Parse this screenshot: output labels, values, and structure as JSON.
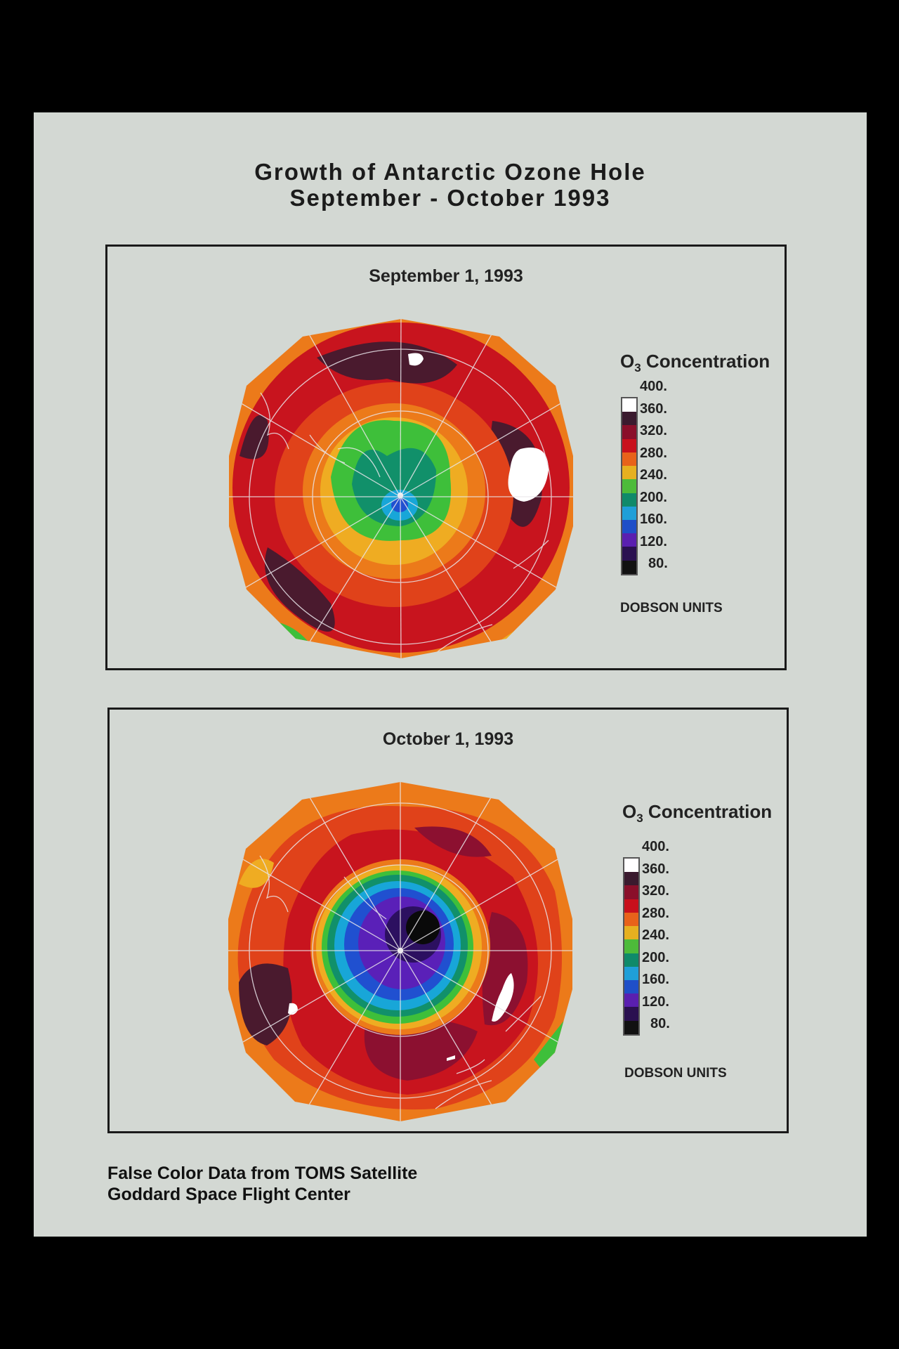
{
  "title": {
    "line1": "Growth of Antarctic Ozone Hole",
    "line2": "September - October 1993"
  },
  "panels": [
    {
      "date": "September 1, 1993",
      "legend_title_main": "O",
      "legend_title_sub": "3",
      "legend_title_rest": " Concentration",
      "units": "DOBSON UNITS"
    },
    {
      "date": "October 1, 1993",
      "legend_title_main": "O",
      "legend_title_sub": "3",
      "legend_title_rest": " Concentration",
      "units": "DOBSON UNITS"
    }
  ],
  "legend": {
    "ticks": [
      "400.",
      "360.",
      "320.",
      "280.",
      "240.",
      "200.",
      "160.",
      "120.",
      "80."
    ],
    "colors": [
      "#ffffff",
      "#3a1a2e",
      "#8a0f2a",
      "#c8101c",
      "#e8621a",
      "#e6b020",
      "#4dbb3a",
      "#0f8a6a",
      "#1f9fd8",
      "#1f4fc8",
      "#5a1fb0",
      "#2a1050",
      "#111111"
    ]
  },
  "credit": {
    "line1": "False Color Data from TOMS Satellite",
    "line2": "Goddard Space Flight Center"
  },
  "map_palette": {
    "dark_maroon": "#4a1a2e",
    "maroon": "#8c1030",
    "red": "#c8141e",
    "orange_red": "#e0421a",
    "orange": "#ec7a1a",
    "yellow_orange": "#efac22",
    "green": "#3ebf3a",
    "teal": "#11906a",
    "cyan": "#18a6d8",
    "blue": "#2050d0",
    "violet": "#5a20b8",
    "indigo": "#2c1060",
    "black": "#0a0a0a",
    "white": "#ffffff"
  }
}
